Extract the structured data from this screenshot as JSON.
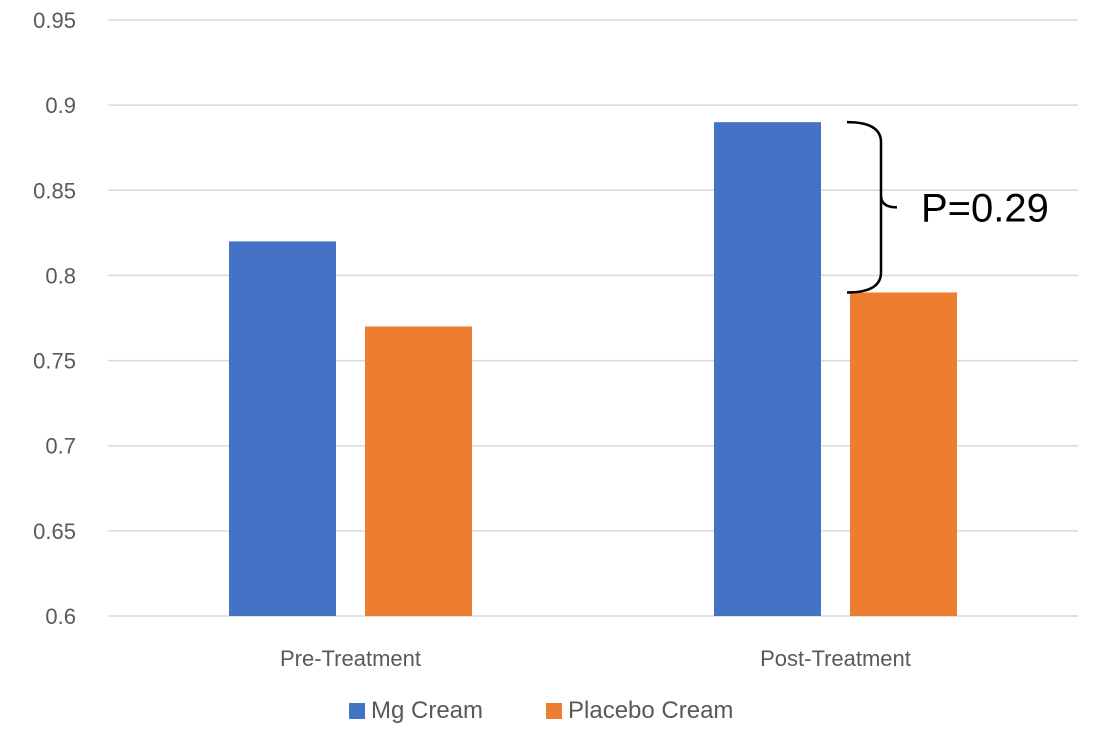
{
  "chart_data": {
    "type": "bar",
    "categories": [
      "Pre-Treatment",
      "Post-Treatment"
    ],
    "series": [
      {
        "name": "Mg Cream",
        "values": [
          0.82,
          0.89
        ],
        "color": "#4472C4"
      },
      {
        "name": "Placebo Cream",
        "values": [
          0.77,
          0.79
        ],
        "color": "#ED7D31"
      }
    ],
    "title": "",
    "xlabel": "",
    "ylabel": "",
    "ylim": [
      0.6,
      0.95
    ],
    "yticks": [
      0.6,
      0.65,
      0.7,
      0.75,
      0.8,
      0.85,
      0.9,
      0.95
    ],
    "ytick_labels": [
      "0.6",
      "0.65",
      "0.7",
      "0.75",
      "0.8",
      "0.85",
      "0.9",
      "0.95"
    ],
    "grid": true,
    "legend": "bottom",
    "annotations": [
      {
        "text": "P=0.29",
        "category": "Post-Treatment",
        "from": 0.79,
        "to": 0.89,
        "type": "bracket"
      }
    ]
  }
}
